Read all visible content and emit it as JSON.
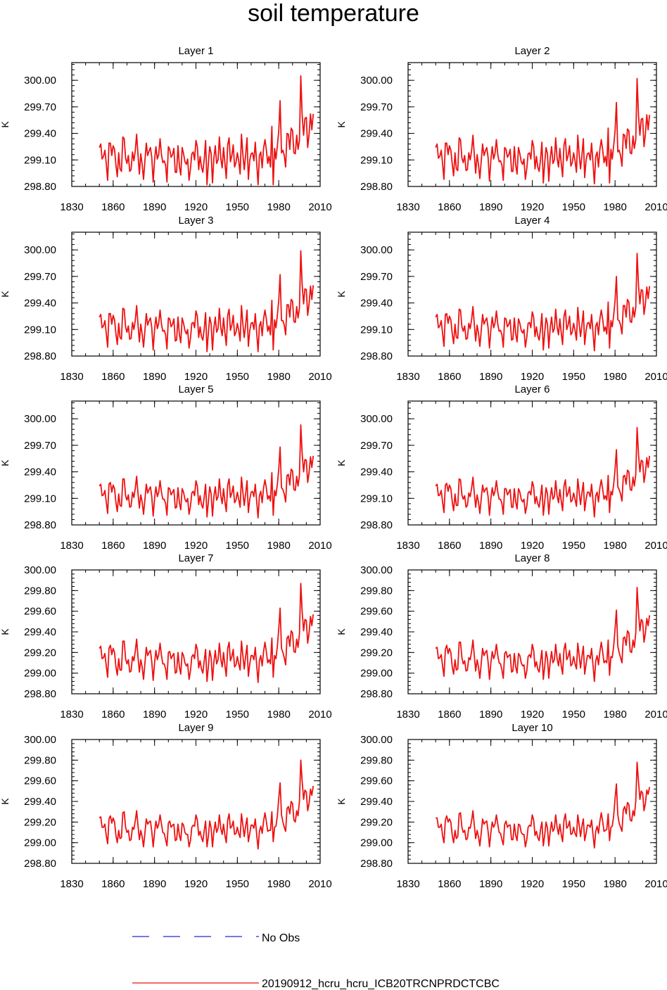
{
  "figure": {
    "title": "soil temperature"
  },
  "legend": {
    "entries": [
      {
        "label": "No Obs",
        "style": "dashed",
        "color": "#1f2bd6"
      },
      {
        "label": "20190912_hcru_hcru_ICB20TRCNPRDCTCBC",
        "style": "solid",
        "color": "#ee1111"
      }
    ]
  },
  "chart_data": [
    {
      "type": "line",
      "title": "Layer 1",
      "ylabel": "K",
      "xlim": [
        1830,
        2010
      ],
      "ylim": [
        298.8,
        300.2
      ],
      "xticks": [
        1830,
        1860,
        1890,
        1920,
        1950,
        1980,
        2010
      ],
      "xtick_labels": [
        "1830",
        "1860",
        "1890",
        "1920",
        "1950",
        "1980",
        "2010"
      ],
      "yticks": [
        298.8,
        299.1,
        299.4,
        299.7,
        300.0
      ],
      "ytick_labels": [
        "298.80",
        "299.10",
        "299.40",
        "299.70",
        "300.00"
      ],
      "series": [
        {
          "values": []
        }
      ]
    },
    {
      "type": "line",
      "title": "Layer 2",
      "ylabel": "K",
      "xlim": [
        1830,
        2010
      ],
      "ylim": [
        298.8,
        300.2
      ],
      "xticks": [
        1830,
        1860,
        1890,
        1920,
        1950,
        1980,
        2010
      ],
      "xtick_labels": [
        "1830",
        "1860",
        "1890",
        "1920",
        "1950",
        "1980",
        "2010"
      ],
      "yticks": [
        298.8,
        299.1,
        299.4,
        299.7,
        300.0
      ],
      "ytick_labels": [
        "298.80",
        "299.10",
        "299.40",
        "299.70",
        "300.00"
      ],
      "series": [
        {
          "values": []
        }
      ]
    },
    {
      "type": "line",
      "title": "Layer 3",
      "ylabel": "K",
      "xlim": [
        1830,
        2010
      ],
      "ylim": [
        298.8,
        300.2
      ],
      "xticks": [
        1830,
        1860,
        1890,
        1920,
        1950,
        1980,
        2010
      ],
      "xtick_labels": [
        "1830",
        "1860",
        "1890",
        "1920",
        "1950",
        "1980",
        "2010"
      ],
      "yticks": [
        298.8,
        299.1,
        299.4,
        299.7,
        300.0
      ],
      "ytick_labels": [
        "298.80",
        "299.10",
        "299.40",
        "299.70",
        "300.00"
      ],
      "series": [
        {
          "values": []
        }
      ]
    },
    {
      "type": "line",
      "title": "Layer 4",
      "ylabel": "K",
      "xlim": [
        1830,
        2010
      ],
      "ylim": [
        298.8,
        300.2
      ],
      "xticks": [
        1830,
        1860,
        1890,
        1920,
        1950,
        1980,
        2010
      ],
      "xtick_labels": [
        "1830",
        "1860",
        "1890",
        "1920",
        "1950",
        "1980",
        "2010"
      ],
      "yticks": [
        298.8,
        299.1,
        299.4,
        299.7,
        300.0
      ],
      "ytick_labels": [
        "298.80",
        "299.10",
        "299.40",
        "299.70",
        "300.00"
      ],
      "series": [
        {
          "values": []
        }
      ]
    },
    {
      "type": "line",
      "title": "Layer 5",
      "ylabel": "K",
      "xlim": [
        1830,
        2010
      ],
      "ylim": [
        298.8,
        300.2
      ],
      "xticks": [
        1830,
        1860,
        1890,
        1920,
        1950,
        1980,
        2010
      ],
      "xtick_labels": [
        "1830",
        "1860",
        "1890",
        "1920",
        "1950",
        "1980",
        "2010"
      ],
      "yticks": [
        298.8,
        299.1,
        299.4,
        299.7,
        300.0
      ],
      "ytick_labels": [
        "298.80",
        "299.10",
        "299.40",
        "299.70",
        "300.00"
      ],
      "series": [
        {
          "values": []
        }
      ]
    },
    {
      "type": "line",
      "title": "Layer 6",
      "ylabel": "K",
      "xlim": [
        1830,
        2010
      ],
      "ylim": [
        298.8,
        300.2
      ],
      "xticks": [
        1830,
        1860,
        1890,
        1920,
        1950,
        1980,
        2010
      ],
      "xtick_labels": [
        "1830",
        "1860",
        "1890",
        "1920",
        "1950",
        "1980",
        "2010"
      ],
      "yticks": [
        298.8,
        299.1,
        299.4,
        299.7,
        300.0
      ],
      "ytick_labels": [
        "298.80",
        "299.10",
        "299.40",
        "299.70",
        "300.00"
      ],
      "series": [
        {
          "values": []
        }
      ]
    },
    {
      "type": "line",
      "title": "Layer 7",
      "ylabel": "K",
      "xlim": [
        1830,
        2010
      ],
      "ylim": [
        298.8,
        300.0
      ],
      "xticks": [
        1830,
        1860,
        1890,
        1920,
        1950,
        1980,
        2010
      ],
      "xtick_labels": [
        "1830",
        "1860",
        "1890",
        "1920",
        "1950",
        "1980",
        "2010"
      ],
      "yticks": [
        298.8,
        299.0,
        299.2,
        299.4,
        299.6,
        299.8,
        300.0
      ],
      "ytick_labels": [
        "298.80",
        "299.00",
        "299.20",
        "299.40",
        "299.60",
        "299.80",
        "300.00"
      ],
      "series": [
        {
          "values": []
        }
      ]
    },
    {
      "type": "line",
      "title": "Layer 8",
      "ylabel": "K",
      "xlim": [
        1830,
        2010
      ],
      "ylim": [
        298.8,
        300.0
      ],
      "xticks": [
        1830,
        1860,
        1890,
        1920,
        1950,
        1980,
        2010
      ],
      "xtick_labels": [
        "1830",
        "1860",
        "1890",
        "1920",
        "1950",
        "1980",
        "2010"
      ],
      "yticks": [
        298.8,
        299.0,
        299.2,
        299.4,
        299.6,
        299.8,
        300.0
      ],
      "ytick_labels": [
        "298.80",
        "299.00",
        "299.20",
        "299.40",
        "299.60",
        "299.80",
        "300.00"
      ],
      "series": [
        {
          "values": []
        }
      ]
    },
    {
      "type": "line",
      "title": "Layer 9",
      "ylabel": "K",
      "xlim": [
        1830,
        2010
      ],
      "ylim": [
        298.8,
        300.0
      ],
      "xticks": [
        1830,
        1860,
        1890,
        1920,
        1950,
        1980,
        2010
      ],
      "xtick_labels": [
        "1830",
        "1860",
        "1890",
        "1920",
        "1950",
        "1980",
        "2010"
      ],
      "yticks": [
        298.8,
        299.0,
        299.2,
        299.4,
        299.6,
        299.8,
        300.0
      ],
      "ytick_labels": [
        "298.80",
        "299.00",
        "299.20",
        "299.40",
        "299.60",
        "299.80",
        "300.00"
      ],
      "series": [
        {
          "values": []
        }
      ]
    },
    {
      "type": "line",
      "title": "Layer 10",
      "ylabel": "K",
      "xlim": [
        1830,
        2010
      ],
      "ylim": [
        298.8,
        300.0
      ],
      "xticks": [
        1830,
        1860,
        1890,
        1920,
        1950,
        1980,
        2010
      ],
      "xtick_labels": [
        "1830",
        "1860",
        "1890",
        "1920",
        "1950",
        "1980",
        "2010"
      ],
      "yticks": [
        298.8,
        299.0,
        299.2,
        299.4,
        299.6,
        299.8,
        300.0
      ],
      "ytick_labels": [
        "298.80",
        "299.00",
        "299.20",
        "299.40",
        "299.60",
        "299.80",
        "300.00"
      ],
      "series": [
        {
          "values": []
        }
      ]
    }
  ]
}
